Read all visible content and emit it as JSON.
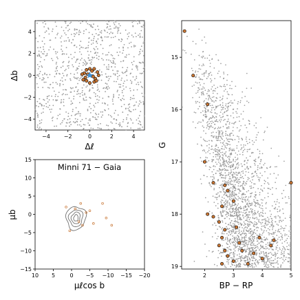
{
  "figure": {
    "annotation": "Minni 71  −  Gaia",
    "colors": {
      "field": "#9a9a9a",
      "members": "#c87533",
      "center": "#3b8fd6",
      "contour": "#707070"
    }
  },
  "chart_data": [
    {
      "id": "sky",
      "type": "scatter",
      "xlabel": "Δℓ",
      "ylabel": "Δb",
      "xlim": [
        -5,
        5
      ],
      "ylim": [
        -5,
        5
      ],
      "xticks": [
        -4,
        -2,
        0,
        2,
        4
      ],
      "yticks": [
        -4,
        -2,
        0,
        2,
        4
      ],
      "xtick_labels": [
        "−4",
        "−2",
        "0",
        "2",
        "4"
      ],
      "ytick_labels": [
        "−4",
        "−2",
        "0",
        "2",
        "4"
      ],
      "center_marker": {
        "x": 0,
        "y": 0
      },
      "members": [
        [
          -0.5,
          0.2
        ],
        [
          -0.3,
          0.5
        ],
        [
          0.0,
          0.6
        ],
        [
          0.4,
          0.6
        ],
        [
          0.7,
          0.3
        ],
        [
          0.8,
          0.0
        ],
        [
          0.5,
          -0.3
        ],
        [
          0.4,
          -0.6
        ],
        [
          0.0,
          -0.7
        ],
        [
          -0.3,
          -0.5
        ],
        [
          -0.6,
          -0.4
        ],
        [
          -0.7,
          0.1
        ],
        [
          0.2,
          0.4
        ],
        [
          -0.2,
          0.1
        ],
        [
          0.3,
          -0.1
        ],
        [
          -0.4,
          -0.2
        ],
        [
          0.6,
          -0.5
        ]
      ],
      "field_count": 900,
      "field_seed": 11
    },
    {
      "id": "cmd",
      "type": "scatter",
      "xlabel": "BP − RP",
      "ylabel": "G",
      "xlim": [
        1.2,
        5.0
      ],
      "ylim": [
        19.05,
        14.3
      ],
      "xticks": [
        2,
        3,
        4,
        5
      ],
      "yticks": [
        15,
        16,
        17,
        18,
        19
      ],
      "xtick_labels": [
        "2",
        "3",
        "4",
        "5"
      ],
      "ytick_labels": [
        "15",
        "16",
        "17",
        "18",
        "19"
      ],
      "members": [
        [
          1.3,
          14.5
        ],
        [
          1.6,
          15.35
        ],
        [
          2.1,
          15.9
        ],
        [
          2.0,
          17.0
        ],
        [
          2.3,
          17.4
        ],
        [
          2.1,
          18.0
        ],
        [
          2.3,
          18.05
        ],
        [
          2.5,
          18.15
        ],
        [
          2.6,
          17.85
        ],
        [
          2.7,
          17.45
        ],
        [
          2.8,
          17.55
        ],
        [
          3.0,
          17.75
        ],
        [
          3.1,
          18.25
        ],
        [
          2.7,
          18.3
        ],
        [
          2.6,
          18.45
        ],
        [
          2.5,
          18.6
        ],
        [
          2.7,
          18.7
        ],
        [
          2.8,
          18.8
        ],
        [
          3.0,
          18.9
        ],
        [
          3.2,
          18.55
        ],
        [
          3.3,
          18.7
        ],
        [
          3.5,
          18.95
        ],
        [
          3.7,
          18.75
        ],
        [
          4.0,
          18.85
        ],
        [
          4.3,
          18.6
        ],
        [
          4.4,
          18.5
        ],
        [
          3.9,
          18.45
        ],
        [
          2.6,
          18.95
        ],
        [
          5.0,
          17.4
        ]
      ],
      "field_count": 2400,
      "field_seed": 29
    },
    {
      "id": "pm",
      "type": "scatter",
      "xlabel": "μℓcos b",
      "ylabel": "μb",
      "xlim": [
        10,
        -20
      ],
      "ylim": [
        -15,
        15
      ],
      "xticks": [
        10,
        5,
        0,
        -5,
        -10,
        -15,
        -20
      ],
      "yticks": [
        15,
        10,
        5,
        0,
        -5,
        -10,
        -15
      ],
      "xtick_labels": [
        "10",
        "5",
        "0",
        "−5",
        "−10",
        "−15",
        "−20"
      ],
      "ytick_labels": [
        "15",
        "10",
        "5",
        "0",
        "−5",
        "−10",
        "−15"
      ],
      "contour_center": [
        -1.2,
        -1.0
      ],
      "contours": [
        {
          "rx": 2.7,
          "ry": 3.2,
          "angle": 8
        },
        {
          "rx": 1.9,
          "ry": 2.3,
          "angle": 8
        },
        {
          "rx": 1.2,
          "ry": 1.6,
          "angle": 8
        },
        {
          "rx": 0.6,
          "ry": 0.9,
          "angle": 8
        }
      ],
      "members": [
        [
          -2.5,
          3.0
        ],
        [
          -8.5,
          3.0
        ],
        [
          -9.5,
          -1.0
        ],
        [
          -11.0,
          -3.0
        ],
        [
          0.5,
          -4.5
        ],
        [
          -3.0,
          -3.0
        ],
        [
          -1.0,
          1.5
        ],
        [
          -5.0,
          1.0
        ],
        [
          -2.0,
          -2.0
        ],
        [
          1.5,
          2.0
        ],
        [
          -6.0,
          -2.5
        ],
        [
          -4.0,
          0.5
        ]
      ]
    }
  ]
}
